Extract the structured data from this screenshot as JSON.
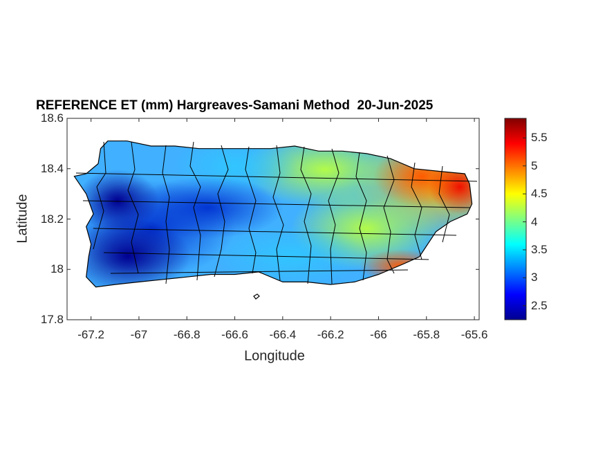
{
  "figure": {
    "title": "REFERENCE ET (mm) Hargreaves-Samani Method  20-Jun-2025",
    "xlabel": "Longitude",
    "ylabel": "Latitude"
  },
  "map": {
    "type": "filled-contour map",
    "region_shown": "Puerto Rico with municipality boundaries",
    "xlim": [
      -67.3,
      -65.58
    ],
    "ylim": [
      17.8,
      18.6
    ],
    "xticks": [
      "-67.2",
      "-67",
      "-66.8",
      "-66.6",
      "-66.4",
      "-66.2",
      "-66",
      "-65.8",
      "-65.6"
    ],
    "yticks": [
      "18.6",
      "18.4",
      "18.2",
      "18",
      "17.8"
    ],
    "pattern": "Low ET (about 2.3-3 mm) in the southwest and central mountains; moderate (3.5-4) across the center and south coast; high (4.5-5.5) in the northeast."
  },
  "colorbar": {
    "colormap": "jet",
    "range": [
      2.25,
      5.85
    ],
    "ticks": [
      "5.5",
      "5",
      "4.5",
      "4",
      "3.5",
      "3",
      "2.5"
    ],
    "colors": [
      "#00008f",
      "#0000ff",
      "#0080ff",
      "#00ffff",
      "#80ff80",
      "#ffff00",
      "#ff8000",
      "#ff0000",
      "#800000"
    ]
  }
}
